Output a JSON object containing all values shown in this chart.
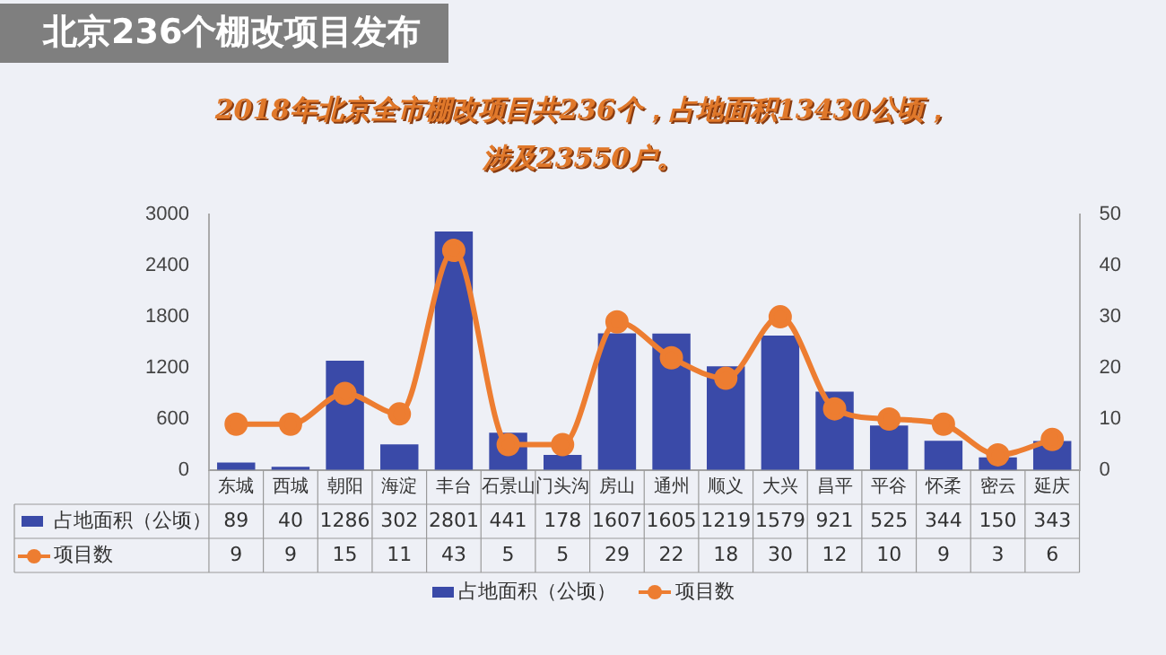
{
  "chart_data": {
    "type": "bar",
    "title": "北京236个棚改项目发布",
    "subtitle": "2018年北京全市棚改项目共236个，占地面积13430公顷，涉及23550户。",
    "categories": [
      "东城",
      "西城",
      "朝阳",
      "海淀",
      "丰台",
      "石景山",
      "门头沟",
      "房山",
      "通州",
      "顺义",
      "大兴",
      "昌平",
      "平谷",
      "怀柔",
      "密云",
      "延庆"
    ],
    "series": [
      {
        "name": "占地面积（公顷）",
        "color": "#3a4aa8",
        "values": [
          89,
          40,
          1286,
          302,
          2801,
          441,
          178,
          1607,
          1605,
          1219,
          1579,
          921,
          525,
          344,
          150,
          343
        ]
      },
      {
        "name": "项目数",
        "type": "line",
        "axis": "y2",
        "color": "#ed7d31",
        "values": [
          9,
          9,
          15,
          11,
          43,
          5,
          5,
          29,
          22,
          18,
          30,
          12,
          10,
          9,
          3,
          6
        ]
      }
    ],
    "ylim": [
      0,
      3000
    ],
    "yticks": [
      0,
      600,
      1200,
      1800,
      2400,
      3000
    ],
    "y2lim": [
      0,
      50
    ],
    "y2ticks": [
      0,
      10,
      20,
      30,
      40,
      50
    ],
    "grid": false,
    "legend": "bottom",
    "marker": "circle",
    "data_labels": true
  }
}
